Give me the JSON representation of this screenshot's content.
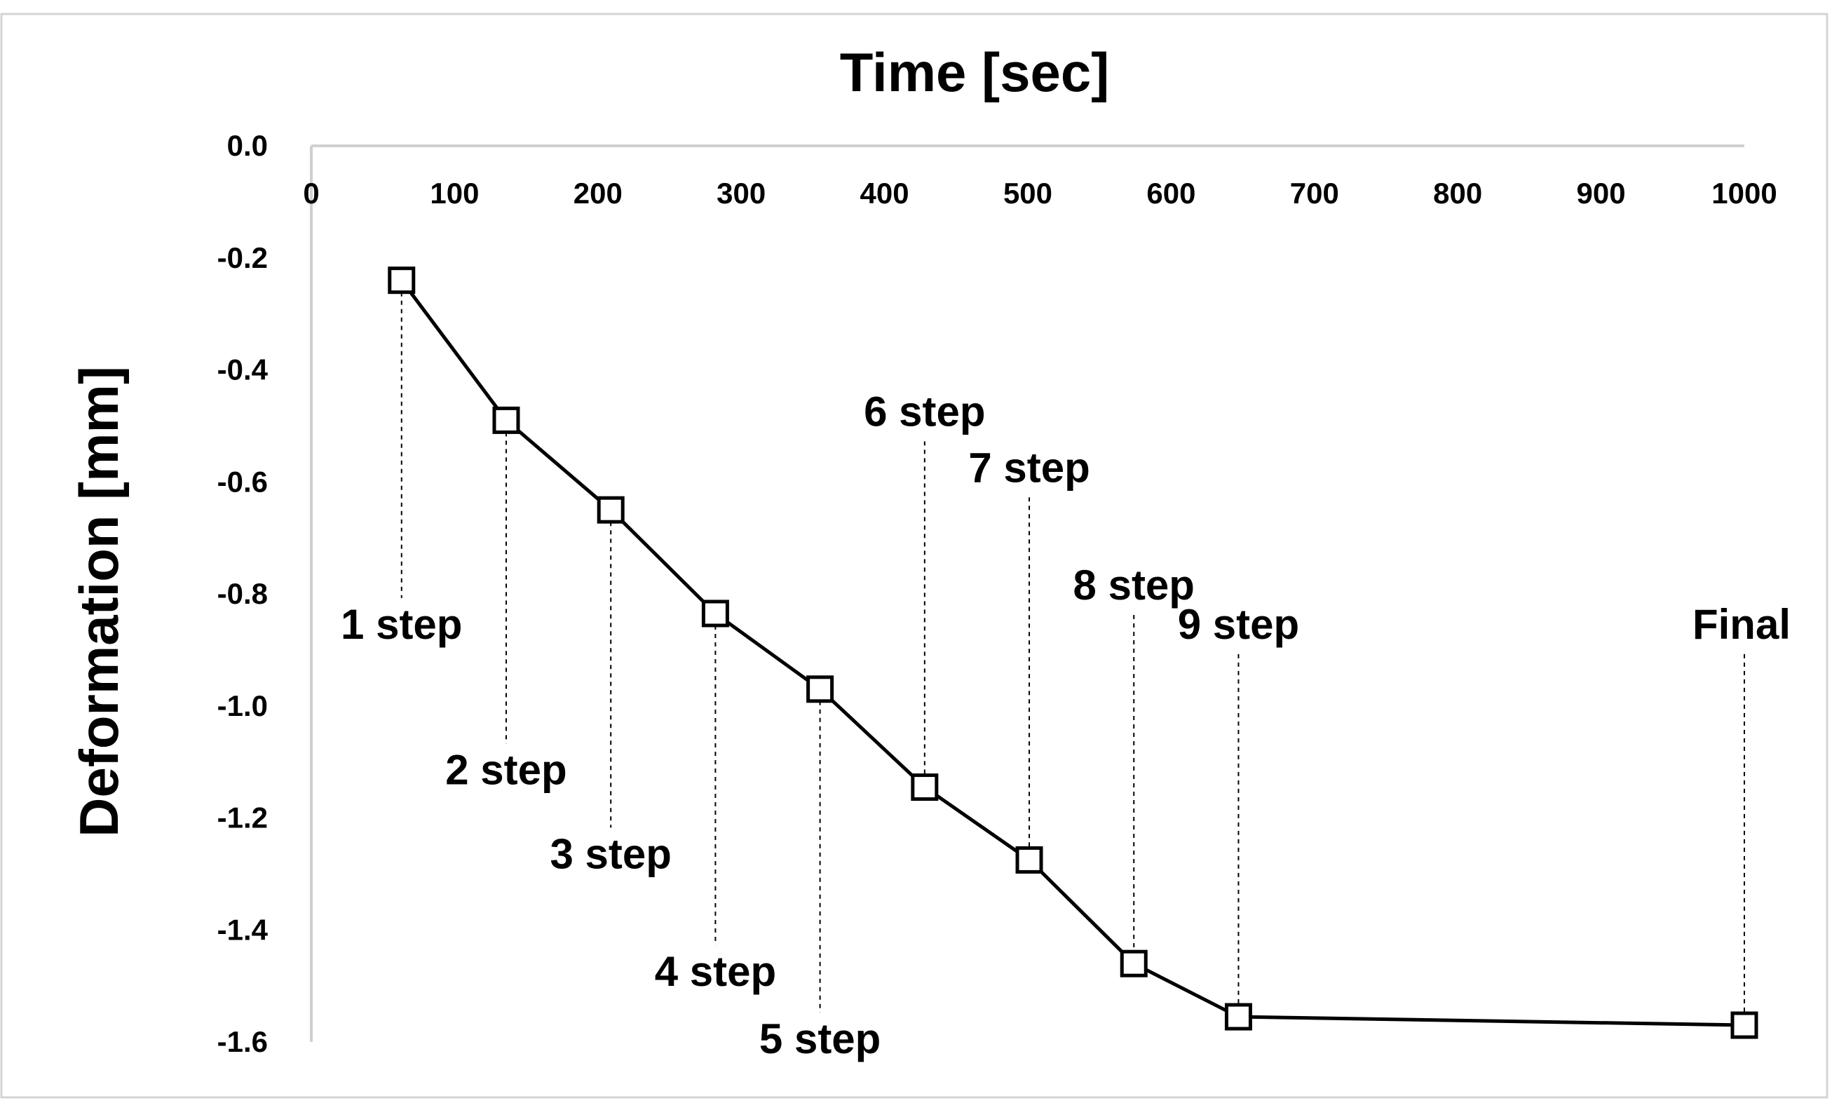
{
  "chart_data": {
    "type": "line",
    "title": "Time [sec]",
    "xlabel": "Time [sec]",
    "ylabel": "Deformation [mm]",
    "xlim": [
      0,
      1000
    ],
    "ylim": [
      -1.6,
      0.0
    ],
    "x_axis_position": "top",
    "grid": false,
    "legend": "none",
    "x_ticks": [
      "0",
      "100",
      "200",
      "300",
      "400",
      "500",
      "600",
      "700",
      "800",
      "900",
      "1000"
    ],
    "y_ticks": [
      "0.0",
      "-0.2",
      "-0.4",
      "-0.6",
      "-0.8",
      "-1.0",
      "-1.2",
      "-1.4",
      "-1.6"
    ],
    "series": [
      {
        "marker": "open-square",
        "color": "#000000",
        "x": [
          63,
          136,
          209,
          282,
          355,
          428,
          501,
          574,
          647,
          1000
        ],
        "y": [
          -0.24,
          -0.49,
          -0.65,
          -0.835,
          -0.97,
          -1.145,
          -1.275,
          -1.46,
          -1.555,
          -1.57
        ]
      }
    ],
    "annotations": [
      {
        "text": "1 step",
        "x": 63,
        "label_y": -0.88
      },
      {
        "text": "2 step",
        "x": 136,
        "label_y": -1.14
      },
      {
        "text": "3 step",
        "x": 209,
        "label_y": -1.29
      },
      {
        "text": "4 step",
        "x": 282,
        "label_y": -1.5
      },
      {
        "text": "5 step",
        "x": 355,
        "label_y": -1.62
      },
      {
        "text": "6 step",
        "x": 428,
        "label_y": -0.5
      },
      {
        "text": "7 step",
        "x": 501,
        "label_y": -0.6
      },
      {
        "text": "8 step",
        "x": 574,
        "label_y": -0.81
      },
      {
        "text": "9 step",
        "x": 647,
        "label_y": -0.88
      },
      {
        "text": "Final",
        "x": 1000,
        "label_y": -0.88
      }
    ]
  }
}
